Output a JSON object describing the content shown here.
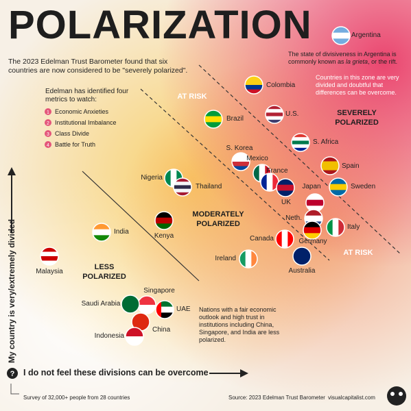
{
  "title": "POLARIZATION",
  "intro": "The 2023 Edelman Trust Barometer found that six countries are now considered to be \"severely polarized\".",
  "metrics_intro": "Edelman has identified four metrics to watch:",
  "metrics": [
    {
      "number": 1,
      "label": "Economic Anxieties"
    },
    {
      "number": 2,
      "label": "Institutional Imbalance"
    },
    {
      "number": 3,
      "label": "Class Divide"
    },
    {
      "number": 4,
      "label": "Battle for Truth"
    }
  ],
  "argentina_note": [
    "The state of divisiveness in Argentina is commonly known as ",
    "la grieta",
    ", or the rift."
  ],
  "zone_note": "Countries in this zone are very divided and doubtful that differences can be overcome.",
  "zones": [
    {
      "lines": [
        "AT RISK"
      ]
    },
    {
      "lines": [
        "SEVERELY",
        "POLARIZED"
      ]
    },
    {
      "lines": [
        "MODERATELY",
        "POLARIZED"
      ]
    },
    {
      "lines": [
        "AT RISK"
      ]
    },
    {
      "lines": [
        "LESS",
        "POLARIZED"
      ]
    }
  ],
  "less_note": "Nations with a fair economic outlook and high trust in institutions including China, Singapore, and India are less polarized.",
  "countries": [
    "Argentina",
    "Colombia",
    "U.S.",
    "Brazil",
    "S. Africa",
    "S. Korea",
    "Mexico",
    "France",
    "Spain",
    "UK",
    "Sweden",
    "Japan",
    "Nigeria",
    "Thailand",
    "Neth.",
    "Italy",
    "Kenya",
    "India",
    "Canada",
    "Germany",
    "Ireland",
    "Australia",
    "Malaysia",
    "Singapore",
    "Saudi Arabia",
    "UAE",
    "China",
    "Indonesia"
  ],
  "y_axis": "My country is very/extremely divided",
  "x_axis": "I do not feel these divisions can be overcome",
  "footer": {
    "survey": "Survey of 32,000+ people from 28 countries",
    "source": "Source: 2023 Edelman Trust Barometer",
    "site": "visualcapitalist.com"
  }
}
